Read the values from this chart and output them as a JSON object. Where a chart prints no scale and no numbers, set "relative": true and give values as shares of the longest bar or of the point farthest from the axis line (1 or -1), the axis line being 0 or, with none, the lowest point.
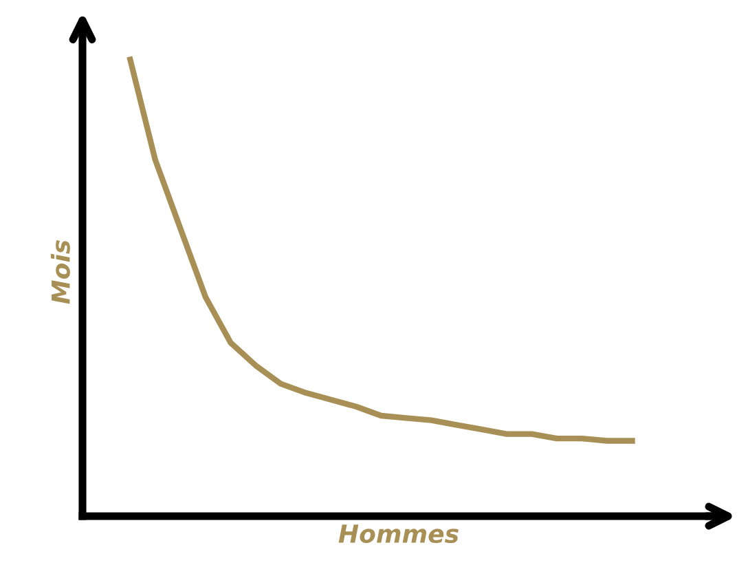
{
  "chart_data": {
    "type": "line",
    "relative": true,
    "xlabel": "Hommes",
    "ylabel": "Mois",
    "categories": [
      null,
      null,
      null,
      null,
      null,
      null,
      null,
      null,
      null,
      null,
      null,
      null,
      null,
      null,
      null,
      null,
      null,
      null,
      null,
      null,
      null
    ],
    "series": [
      {
        "color": "#a88f55",
        "values": [
          1.0,
          0.78,
          0.63,
          0.48,
          0.38,
          0.33,
          0.29,
          0.27,
          0.255,
          0.24,
          0.22,
          0.215,
          0.21,
          0.2,
          0.19,
          0.18,
          0.18,
          0.17,
          0.17,
          0.165,
          0.165
        ]
      }
    ],
    "legend": false,
    "marker": "none",
    "line_style": "solid"
  }
}
